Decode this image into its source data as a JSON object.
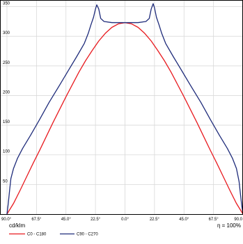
{
  "chart_data": {
    "type": "line",
    "xlim": [
      -90,
      90
    ],
    "ylim": [
      0,
      360
    ],
    "grid": true,
    "y_ticks": [
      {
        "value": 50,
        "label": "50"
      },
      {
        "value": 100,
        "label": "100"
      },
      {
        "value": 150,
        "label": "150"
      },
      {
        "value": 200,
        "label": "200"
      },
      {
        "value": 250,
        "label": "250"
      },
      {
        "value": 300,
        "label": "300"
      },
      {
        "value": 350,
        "label": "350"
      }
    ],
    "x_ticks": [
      {
        "value": -90,
        "label": "90.0°"
      },
      {
        "value": -67.5,
        "label": "67.5°"
      },
      {
        "value": -45,
        "label": "45.0°"
      },
      {
        "value": -22.5,
        "label": "22.5°"
      },
      {
        "value": 0,
        "label": "0.0°"
      },
      {
        "value": 22.5,
        "label": "22.5°"
      },
      {
        "value": 45,
        "label": "45.0°"
      },
      {
        "value": 67.5,
        "label": "67.5°"
      },
      {
        "value": 90,
        "label": "90.0"
      }
    ],
    "unit_label": "cd/klm",
    "efficiency_label": "η =  100%",
    "series": [
      {
        "name": "C0 - C180",
        "color": "#e8191e",
        "points": [
          [
            -90,
            0
          ],
          [
            -85,
            18
          ],
          [
            -80,
            40
          ],
          [
            -75,
            63
          ],
          [
            -70,
            86
          ],
          [
            -65,
            108
          ],
          [
            -60,
            131
          ],
          [
            -55,
            154
          ],
          [
            -50,
            176
          ],
          [
            -45,
            198
          ],
          [
            -40,
            219
          ],
          [
            -35,
            240
          ],
          [
            -30,
            259
          ],
          [
            -25,
            276
          ],
          [
            -20,
            292
          ],
          [
            -15,
            305
          ],
          [
            -10,
            315
          ],
          [
            -5,
            321
          ],
          [
            0,
            323
          ],
          [
            5,
            321
          ],
          [
            10,
            315
          ],
          [
            15,
            305
          ],
          [
            20,
            292
          ],
          [
            25,
            276
          ],
          [
            30,
            259
          ],
          [
            35,
            240
          ],
          [
            40,
            219
          ],
          [
            45,
            198
          ],
          [
            50,
            176
          ],
          [
            55,
            154
          ],
          [
            60,
            131
          ],
          [
            65,
            108
          ],
          [
            70,
            86
          ],
          [
            75,
            63
          ],
          [
            80,
            40
          ],
          [
            85,
            18
          ],
          [
            90,
            0
          ]
        ]
      },
      {
        "name": "C90 - C270",
        "color": "#1e2b7a",
        "points": [
          [
            -90,
            0
          ],
          [
            -89,
            18
          ],
          [
            -88,
            40
          ],
          [
            -87,
            60
          ],
          [
            -85,
            77
          ],
          [
            -82,
            94
          ],
          [
            -78,
            111
          ],
          [
            -72,
            133
          ],
          [
            -65,
            160
          ],
          [
            -58,
            188
          ],
          [
            -50,
            217
          ],
          [
            -43,
            243
          ],
          [
            -37,
            265
          ],
          [
            -31,
            288
          ],
          [
            -28,
            305
          ],
          [
            -26,
            319
          ],
          [
            -24,
            332
          ],
          [
            -22.5,
            346
          ],
          [
            -21.5,
            353
          ],
          [
            -20,
            346
          ],
          [
            -18.5,
            330
          ],
          [
            -16,
            325
          ],
          [
            -10,
            323
          ],
          [
            0,
            323
          ],
          [
            10,
            323
          ],
          [
            16,
            325
          ],
          [
            18.5,
            330
          ],
          [
            20,
            346
          ],
          [
            21.5,
            355
          ],
          [
            22.5,
            348
          ],
          [
            24,
            332
          ],
          [
            26,
            319
          ],
          [
            28,
            305
          ],
          [
            31,
            288
          ],
          [
            37,
            265
          ],
          [
            43,
            243
          ],
          [
            50,
            217
          ],
          [
            58,
            188
          ],
          [
            65,
            160
          ],
          [
            72,
            133
          ],
          [
            78,
            111
          ],
          [
            82,
            94
          ],
          [
            85,
            77
          ],
          [
            87,
            55
          ],
          [
            88,
            35
          ],
          [
            89,
            15
          ],
          [
            90,
            0
          ]
        ]
      }
    ]
  }
}
